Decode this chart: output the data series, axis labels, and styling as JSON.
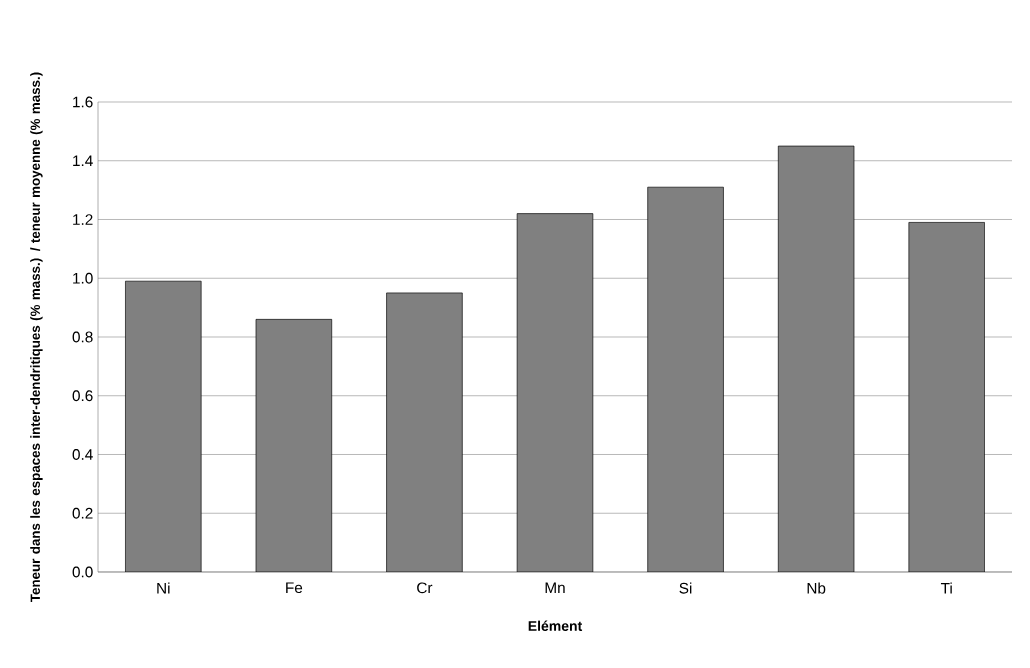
{
  "chart_data": {
    "type": "bar",
    "xlabel": "Elément",
    "ylabel": "Teneur dans les espaces inter-dendritiques (% mass.) / teneur moyenne (% mass.)",
    "categories": [
      "Ni",
      "Fe",
      "Cr",
      "Mn",
      "Si",
      "Nb",
      "Ti"
    ],
    "values": [
      0.99,
      0.86,
      0.95,
      1.22,
      1.31,
      1.45,
      1.19
    ],
    "color": "#808080",
    "ylim": [
      0,
      1.6
    ],
    "yticks": [
      {
        "value": 0,
        "label": "0.0"
      },
      {
        "value": 0.2,
        "label": "0.2"
      },
      {
        "value": 0.4,
        "label": "0.4"
      },
      {
        "value": 0.6,
        "label": "0.6"
      },
      {
        "value": 0.8,
        "label": "0.8"
      },
      {
        "value": 1.0,
        "label": "1.0"
      },
      {
        "value": 1.2,
        "label": "1.2"
      },
      {
        "value": 1.4,
        "label": "1.4"
      },
      {
        "value": 1.6,
        "label": "1.6"
      }
    ],
    "grid": "y"
  }
}
